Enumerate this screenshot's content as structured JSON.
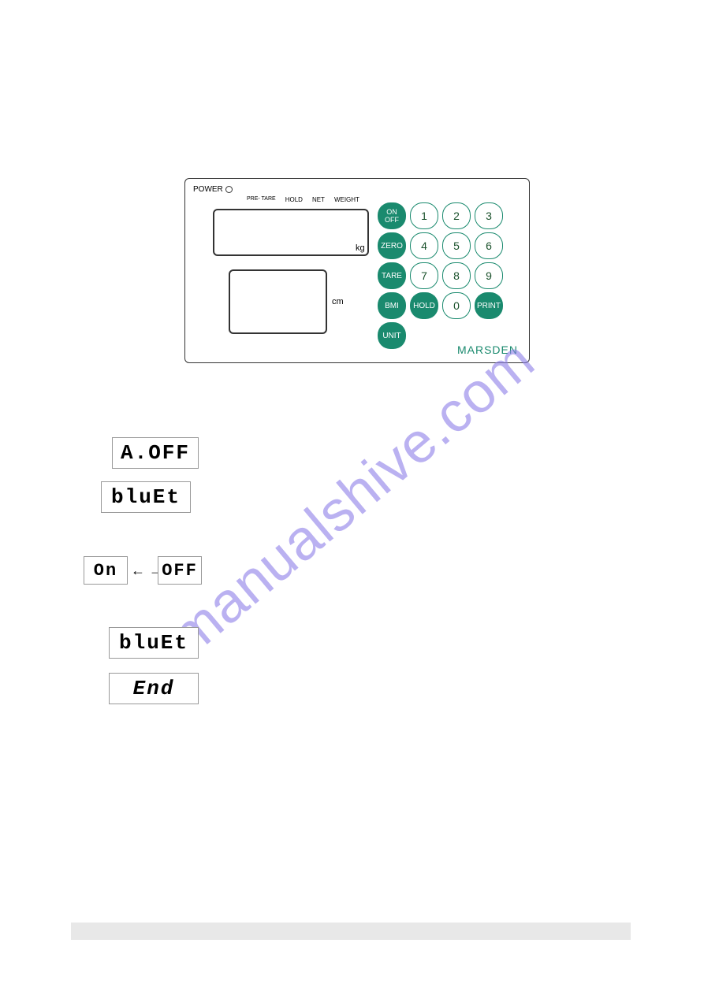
{
  "device": {
    "power_label": "POWER",
    "indicators": {
      "pre_tare": "PRE-\nTARE",
      "hold": "HOLD",
      "net": "NET",
      "weight": "WEIGHT"
    },
    "kg_label": "kg",
    "cm_label": "cm",
    "brand": "MARSDEN",
    "keys": {
      "onoff": "ON\nOFF",
      "zero": "ZERO",
      "tare": "TARE",
      "bmi": "BMI",
      "hold": "HOLD",
      "print": "PRINT",
      "unit": "UNIT",
      "n1": "1",
      "n2": "2",
      "n3": "3",
      "n4": "4",
      "n5": "5",
      "n6": "6",
      "n7": "7",
      "n8": "8",
      "n9": "9",
      "n0": "0"
    }
  },
  "lcd": {
    "aoff": "A.OFF",
    "bluet1": "bluEt",
    "on": "On",
    "off": "OFF",
    "arrows": "← →",
    "bluet2": "bluEt",
    "end": "End"
  },
  "watermark": "manualshive.com",
  "colors": {
    "teal": "#1a8a6e",
    "watermark": "#8d7ee8",
    "footer": "#e8e8e8"
  }
}
